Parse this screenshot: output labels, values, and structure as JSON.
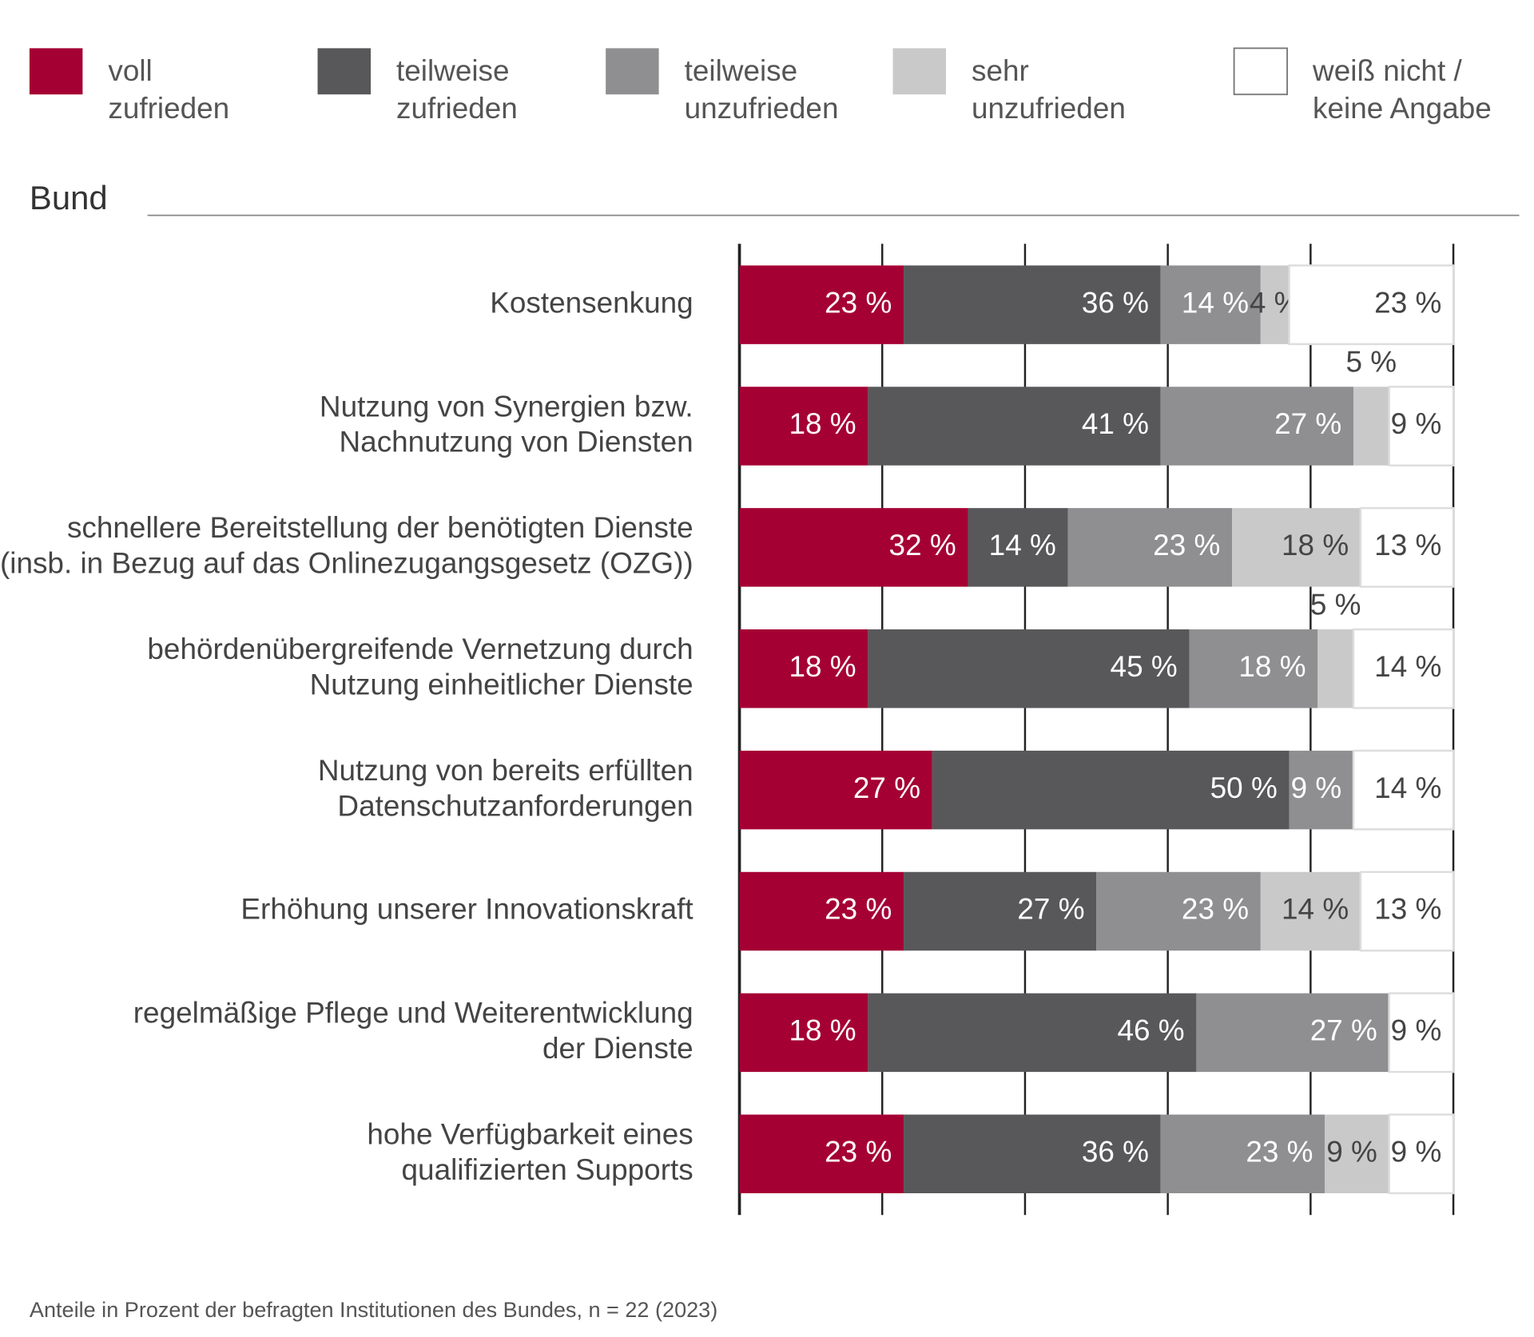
{
  "chart_data": {
    "type": "stacked-bar-horizontal",
    "section_title": "Bund",
    "footnote": "Anteile in Prozent der befragten Institutionen des Bundes, n = 22 (2023)",
    "categories": [
      "Kostensenkung",
      "Nutzung von Synergien bzw.\nNachnutzung von Diensten",
      "schnellere Bereitstellung der benötigten Dienste\n(insb. in Bezug auf das Onlinezugangsgesetz (OZG))",
      "behördenübergreifende Vernetzung durch\nNutzung einheitlicher Dienste",
      "Nutzung von bereits erfüllten\nDatenschutzanforderungen",
      "Erhöhung unserer Innovationskraft",
      "regelmäßige Pflege und Weiterentwicklung\nder Dienste",
      "hohe Verfügbarkeit eines\nqualifizierten Supports"
    ],
    "series": [
      {
        "name": "voll\nzufrieden",
        "color": "#a50034",
        "values": [
          23,
          18,
          32,
          18,
          27,
          23,
          18,
          23
        ],
        "value_labels": [
          "23 %",
          "18 %",
          "32 %",
          "18 %",
          "27 %",
          "23 %",
          "18 %",
          "23 %"
        ]
      },
      {
        "name": "teilweise\nzufrieden",
        "color": "#58585a",
        "values": [
          36,
          41,
          14,
          45,
          50,
          27,
          46,
          36
        ],
        "value_labels": [
          "36 %",
          "41 %",
          "14 %",
          "45 %",
          "50 %",
          "27 %",
          "46 %",
          "36 %"
        ]
      },
      {
        "name": "teilweise\nunzufrieden",
        "color": "#8f8f91",
        "values": [
          14,
          27,
          23,
          18,
          9,
          23,
          27,
          23
        ],
        "value_labels": [
          "14 %",
          "27 %",
          "23 %",
          "18 %",
          "9 %",
          "23 %",
          "27 %",
          "23 %"
        ]
      },
      {
        "name": "sehr\nunzufrieden",
        "color": "#c9c9c9",
        "values": [
          4,
          5,
          18,
          5,
          null,
          14,
          null,
          9
        ],
        "value_labels": [
          "4 %",
          "5 %",
          "18 %",
          "5 %",
          null,
          "14 %",
          null,
          "9 %"
        ]
      },
      {
        "name": "weiß nicht /\nkeine Angabe",
        "color": "#ffffff",
        "values": [
          23,
          9,
          13,
          14,
          14,
          13,
          9,
          9
        ],
        "value_labels": [
          "23 %",
          "9 %",
          "13 %",
          "14 %",
          "14 %",
          "13 %",
          "9 %",
          "9 %"
        ]
      }
    ],
    "xlim": [
      0,
      100
    ],
    "xticks": [
      0,
      20,
      40,
      60,
      80,
      100
    ],
    "grid": true
  }
}
